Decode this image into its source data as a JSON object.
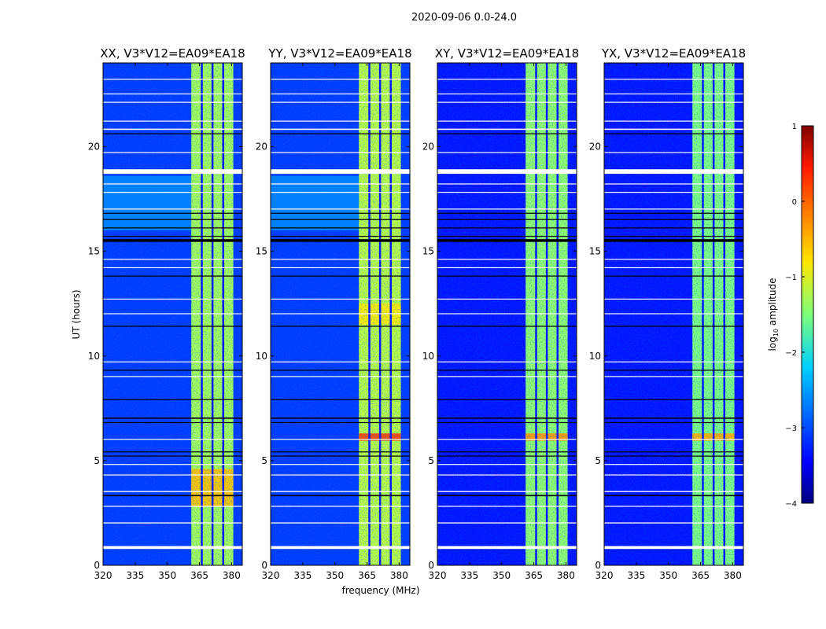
{
  "chart_data": {
    "type": "heatmap",
    "title": "2020-09-06 0.0-24.0",
    "xlabel": "frequency (MHz)",
    "ylabel": "UT (hours)",
    "xlim": [
      320,
      385
    ],
    "ylim": [
      0,
      24
    ],
    "xticks": [
      "320",
      "335",
      "350",
      "365",
      "380"
    ],
    "xtick_values": [
      320,
      335,
      350,
      365,
      380
    ],
    "yticks": [
      "0",
      "5",
      "10",
      "15",
      "20"
    ],
    "ytick_values": [
      0,
      5,
      10,
      15,
      20
    ],
    "panels": [
      {
        "title": "XX, V3*V12=EA09*EA18",
        "band_level": -1.3,
        "hot": [
          {
            "t": [
              2.8,
              4.6
            ],
            "level": -0.6
          }
        ],
        "diffuse": {
          "t": [
            16.0,
            18.6
          ],
          "level": -2.5
        },
        "background_level": -3.1
      },
      {
        "title": "YY, V3*V12=EA09*EA18",
        "band_level": -1.2,
        "hot": [
          {
            "t": [
              5.95,
              6.3
            ],
            "level": 0.0
          },
          {
            "t": [
              11.5,
              12.5
            ],
            "level": -0.8
          }
        ],
        "diffuse": {
          "t": [
            16.0,
            18.6
          ],
          "level": -2.5
        },
        "background_level": -3.1
      },
      {
        "title": "XY, V3*V12=EA09*EA18",
        "band_level": -1.4,
        "hot": [
          {
            "t": [
              5.95,
              6.3
            ],
            "level": -0.4
          }
        ],
        "diffuse": null,
        "background_level": -3.3
      },
      {
        "title": "YX, V3*V12=EA09*EA18",
        "band_level": -1.5,
        "hot": [
          {
            "t": [
              5.95,
              6.3
            ],
            "level": -0.5
          }
        ],
        "diffuse": null,
        "background_level": -3.3
      }
    ],
    "band": {
      "freq_range": [
        361.2,
        380.8
      ],
      "gaps_mhz": [
        366,
        371,
        376
      ]
    },
    "flagged_times": [
      [
        0.78,
        0.92
      ],
      [
        2.0,
        2.05
      ],
      [
        2.8,
        2.84
      ],
      [
        3.5,
        3.55
      ],
      [
        4.3,
        4.34
      ],
      [
        4.8,
        4.84
      ],
      [
        6.0,
        6.04
      ],
      [
        9.0,
        9.04
      ],
      [
        9.7,
        9.74
      ],
      [
        12.0,
        12.04
      ],
      [
        12.7,
        12.74
      ],
      [
        14.2,
        14.24
      ],
      [
        14.6,
        14.64
      ],
      [
        17.0,
        17.04
      ],
      [
        17.8,
        17.84
      ],
      [
        18.2,
        18.24
      ],
      [
        18.7,
        18.92
      ],
      [
        19.7,
        19.74
      ],
      [
        20.8,
        20.86
      ],
      [
        21.2,
        21.24
      ],
      [
        22.1,
        22.14
      ],
      [
        22.5,
        22.54
      ],
      [
        23.2,
        23.24
      ]
    ],
    "dropout_times": [
      [
        3.3,
        3.36
      ],
      [
        5.2,
        5.24
      ],
      [
        5.4,
        5.44
      ],
      [
        6.8,
        6.84
      ],
      [
        7.0,
        7.06
      ],
      [
        7.9,
        7.94
      ],
      [
        9.3,
        9.34
      ],
      [
        11.4,
        11.44
      ],
      [
        13.8,
        13.84
      ],
      [
        15.45,
        15.58
      ],
      [
        15.7,
        15.74
      ],
      [
        16.1,
        16.14
      ],
      [
        16.5,
        16.54
      ],
      [
        16.8,
        16.84
      ],
      [
        20.6,
        20.64
      ]
    ],
    "colorbar": {
      "label": "log10 amplitude",
      "label_main": "log",
      "label_sub": "10",
      "label_rest": " amplitude",
      "range": [
        -4,
        1
      ],
      "ticks": [
        "1",
        "0",
        "−1",
        "−2",
        "−3",
        "−4"
      ],
      "tick_values": [
        1,
        0,
        -1,
        -2,
        -3,
        -4
      ]
    }
  }
}
